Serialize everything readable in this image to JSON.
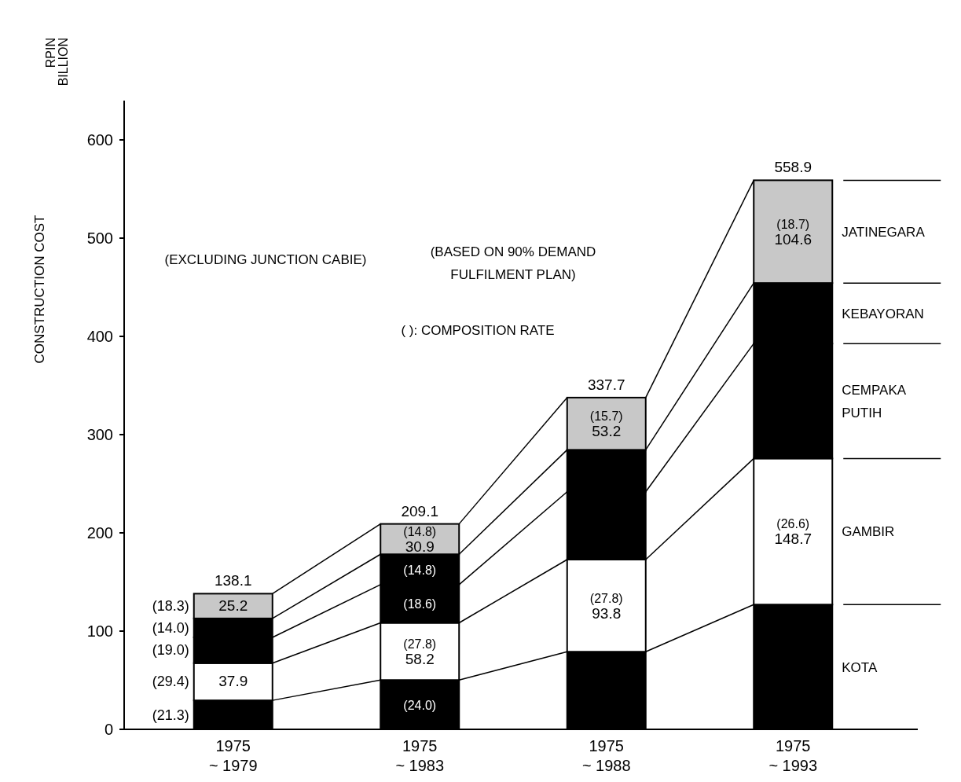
{
  "chart_data": {
    "type": "bar",
    "stacked": true,
    "ylabel": "CONSTRUCTION COST",
    "categories": [
      "1975\n~ 1979",
      "1975\n~ 1983",
      "1975\n~ 1988",
      "1975\n~ 1993"
    ],
    "series": [
      {
        "name": "KOTA",
        "color": "#000000",
        "values": [
          29.5,
          50.2,
          79,
          127
        ],
        "value_labels": [
          null,
          null,
          null,
          null
        ]
      },
      {
        "name": "GAMBIR",
        "color": "#ffffff",
        "values": [
          37.9,
          58.2,
          93.8,
          148.7
        ],
        "value_labels": [
          "37.9",
          "58.2",
          "93.8",
          "148.7"
        ]
      },
      {
        "name": "CEMPAKA\nPUTIH",
        "color": "#000000",
        "values": [
          26.2,
          38.9,
          69,
          117
        ],
        "value_labels": [
          null,
          null,
          null,
          null
        ]
      },
      {
        "name": "KEBAYORAN",
        "color": "#000000",
        "values": [
          19.3,
          30.9,
          42.7,
          61.6
        ],
        "value_labels": [
          null,
          null,
          null,
          null
        ]
      },
      {
        "name": "JATINEGARA",
        "color": "#c8c8c8",
        "values": [
          25.2,
          30.9,
          53.2,
          104.6
        ],
        "value_labels": [
          "25.2",
          "30.9",
          "53.2",
          "104.6"
        ]
      }
    ],
    "totals": [
      "138.1",
      "209.1",
      "337.7",
      "558.9"
    ],
    "ylim": [
      0,
      640
    ],
    "yticks": [
      0,
      100,
      200,
      300,
      400,
      500,
      600
    ],
    "grid": false,
    "legend": "right",
    "annotations": [
      "RPIN\nBILLION",
      "(EXCLUDING JUNCTION CABIE)",
      "( ): COMPOSITION RATE",
      "(BASED ON 90% DEMAND\nFULFILMENT PLAN)",
      "(21.3)",
      "(29.4)",
      "(19.0)",
      "(14.0)",
      "(18.3)",
      "(24.0)",
      "(27.8)",
      "(18.6)",
      "(14.8)",
      "(14.8)",
      "(15.7)",
      "(27.8)",
      "(18.7)",
      "(26.6)"
    ]
  }
}
